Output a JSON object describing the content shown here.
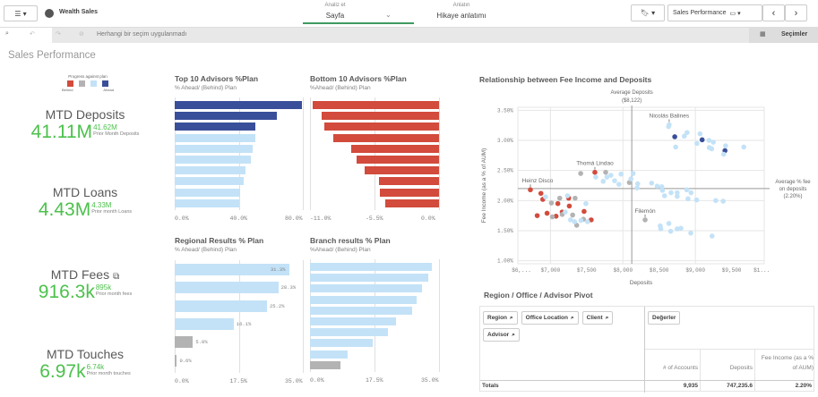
{
  "topbar": {
    "app_name": "Wealth Sales",
    "analyze_label": "Analiz et",
    "analyze_value": "Sayfa",
    "story_label": "Anlatın",
    "story_value": "Hikaye anlatımı",
    "sheet_name": "Sales Performance"
  },
  "selection_bar": {
    "status": "Herhangi bir seçim uygulanmadı",
    "selections_label": "Seçimler"
  },
  "page_title": "Sales Performance",
  "legend": {
    "title": "Progress against plan",
    "behind": "Behind",
    "ahead": "Ahead",
    "colors": [
      "#d24b3c",
      "#b3b3b3",
      "#c3e2f7",
      "#3a4f9a"
    ]
  },
  "kpis": [
    {
      "title": "MTD Deposits",
      "value": "41.11M",
      "prior": "41.62M",
      "prior_label": "Prior Month Deposits"
    },
    {
      "title": "MTD Loans",
      "value": "4.43M",
      "prior": "4.33M",
      "prior_label": "Prior month Loans"
    },
    {
      "title": "MTD Fees",
      "value": "916.3k",
      "prior": "895k",
      "prior_label": "Prior month fees"
    },
    {
      "title": "MTD Touches",
      "value": "6.97k",
      "prior": "6.74k",
      "prior_label": "Prior month touches"
    }
  ],
  "colors": {
    "ahead_strong": "#3a4f9a",
    "ahead": "#c3e2f7",
    "neutral": "#b3b3b3",
    "behind": "#d24b3c",
    "kpi_green": "#4cc14c"
  },
  "chart_data": [
    {
      "type": "bar",
      "orientation": "horizontal",
      "title": "Top 10 Advisors %Plan",
      "subtitle": "% Ahead/ (Behind) Plan",
      "xlim": [
        0,
        80
      ],
      "ticks": [
        "0.0%",
        "40.0%",
        "80.0%"
      ],
      "values": [
        79.4,
        63.6,
        50.5,
        50.1,
        48.6,
        47.7,
        44.3,
        43.0,
        40.7,
        40.2
      ],
      "colors": [
        "d",
        "d",
        "d",
        "l",
        "l",
        "l",
        "l",
        "l",
        "l",
        "l"
      ]
    },
    {
      "type": "bar",
      "orientation": "horizontal",
      "title": "Bottom 10 Advisors %Plan",
      "subtitle": "%Ahead/ (Behind) Plan",
      "xlim": [
        -11,
        0
      ],
      "ticks": [
        "-11.0%",
        "-5.5%",
        "0.0%"
      ],
      "values": [
        -10.8,
        -10.0,
        -9.75,
        -8.98,
        -7.47,
        -7.06,
        -6.32,
        -5.12,
        -5.04,
        -4.55
      ],
      "colors": [
        "r",
        "r",
        "r",
        "r",
        "r",
        "r",
        "r",
        "r",
        "r",
        "r"
      ]
    },
    {
      "type": "bar",
      "orientation": "horizontal",
      "title": "Regional Results % Plan",
      "subtitle": "% Ahead/ (Behind) Plan",
      "xlim": [
        0,
        35
      ],
      "ticks": [
        "0.0%",
        "17.5%",
        "35.0%"
      ],
      "values": [
        31.3,
        28.3,
        25.2,
        16.1,
        5.0,
        0.6
      ],
      "labels": [
        "31.3%",
        "28.3%",
        "25.2%",
        "16.1%",
        "5.0%",
        "0.6%"
      ],
      "colors": [
        "l",
        "l",
        "l",
        "l",
        "g",
        "g"
      ]
    },
    {
      "type": "bar",
      "orientation": "horizontal",
      "title": "Branch results % Plan",
      "subtitle": "%Ahead/ (Behind) Plan",
      "xlim": [
        0,
        35
      ],
      "ticks": [
        "0.0%",
        "17.5%",
        "35.0%"
      ],
      "values": [
        33.1,
        32.0,
        30.5,
        28.9,
        27.7,
        23.3,
        21.2,
        17.1,
        10.3,
        8.3
      ],
      "colors": [
        "l",
        "l",
        "l",
        "l",
        "l",
        "l",
        "l",
        "l",
        "l",
        "g"
      ]
    },
    {
      "type": "scatter",
      "title": "Relationship between Fee Income and Deposits",
      "xlabel": "Deposits",
      "ylabel": "Fee Income (as a % of AUM)",
      "xlim": [
        6550,
        9950
      ],
      "ylim": [
        0.95,
        3.55
      ],
      "xticks": [
        {
          "v": 6600,
          "t": "$6,..."
        },
        {
          "v": 7000,
          "t": "$7,000"
        },
        {
          "v": 7500,
          "t": "$7,500"
        },
        {
          "v": 8000,
          "t": "$8,000"
        },
        {
          "v": 8500,
          "t": "$8,500"
        },
        {
          "v": 9000,
          "t": "$9,000"
        },
        {
          "v": 9500,
          "t": "$9,500"
        },
        {
          "v": 9915,
          "t": "$1..."
        }
      ],
      "yticks": [
        {
          "v": 3.5,
          "t": "3.50%"
        },
        {
          "v": 3.0,
          "t": "3.00%"
        },
        {
          "v": 2.5,
          "t": "2.50%"
        },
        {
          "v": 2.0,
          "t": "2.00%"
        },
        {
          "v": 1.5,
          "t": "1.50%"
        },
        {
          "v": 1.0,
          "t": "1.00%"
        }
      ],
      "ref_x": {
        "value": 8122,
        "label1": "Average Deposits",
        "label2": "($8,122)"
      },
      "ref_y": {
        "value": 2.2,
        "label1": "Average % fee",
        "label2": "on deposits",
        "label3": "(2.20%)"
      },
      "annotations": [
        {
          "x": 8638,
          "y": 3.26,
          "t": "Nicolás Balines"
        },
        {
          "x": 7613,
          "y": 2.47,
          "t": "Thomá Lindao"
        },
        {
          "x": 6723,
          "y": 2.18,
          "t": "Heinz Disco"
        },
        {
          "x": 8306,
          "y": 1.68,
          "t": "Filemón"
        }
      ],
      "points": [
        [
          8715,
          3.06,
          "d"
        ],
        [
          9093,
          3.01,
          "d"
        ],
        [
          9408,
          2.83,
          "d"
        ],
        [
          8638,
          3.26,
          "l"
        ],
        [
          8630,
          3.23,
          "l"
        ],
        [
          8885,
          3.13,
          "l"
        ],
        [
          8847,
          3.07,
          "l"
        ],
        [
          9064,
          3.11,
          "l"
        ],
        [
          9187,
          3.0,
          "l"
        ],
        [
          9247,
          2.97,
          "l"
        ],
        [
          9021,
          2.95,
          "l"
        ],
        [
          8728,
          2.89,
          "l"
        ],
        [
          9191,
          2.88,
          "l"
        ],
        [
          9225,
          2.86,
          "l"
        ],
        [
          9417,
          2.91,
          "l"
        ],
        [
          9391,
          2.77,
          "l"
        ],
        [
          9668,
          2.89,
          "l"
        ],
        [
          7613,
          2.47,
          "r"
        ],
        [
          7417,
          2.45,
          "g"
        ],
        [
          7762,
          2.47,
          "g"
        ],
        [
          8089,
          2.3,
          "g"
        ],
        [
          8140,
          2.45,
          "l"
        ],
        [
          7974,
          2.44,
          "l"
        ],
        [
          7834,
          2.42,
          "l"
        ],
        [
          7625,
          2.39,
          "l"
        ],
        [
          7779,
          2.39,
          "l"
        ],
        [
          7728,
          2.32,
          "l"
        ],
        [
          7885,
          2.33,
          "l"
        ],
        [
          7945,
          2.27,
          "l"
        ],
        [
          8111,
          2.36,
          "l"
        ],
        [
          8204,
          2.28,
          "l"
        ],
        [
          8196,
          2.21,
          "l"
        ],
        [
          8396,
          2.29,
          "l"
        ],
        [
          8472,
          2.24,
          "l"
        ],
        [
          8536,
          2.23,
          "l"
        ],
        [
          8545,
          2.17,
          "l"
        ],
        [
          8574,
          2.08,
          "l"
        ],
        [
          8664,
          2.13,
          "l"
        ],
        [
          8749,
          2.13,
          "l"
        ],
        [
          8749,
          2.07,
          "l"
        ],
        [
          8881,
          2.18,
          "l"
        ],
        [
          8940,
          2.13,
          "l"
        ],
        [
          8898,
          2.03,
          "l"
        ],
        [
          9017,
          2.01,
          "l"
        ],
        [
          9281,
          2.0,
          "l"
        ],
        [
          9383,
          1.99,
          "l"
        ],
        [
          6723,
          2.18,
          "r"
        ],
        [
          6868,
          2.12,
          "r"
        ],
        [
          6894,
          2.02,
          "r"
        ],
        [
          7102,
          1.95,
          "r"
        ],
        [
          7251,
          2.04,
          "r"
        ],
        [
          7260,
          1.91,
          "r"
        ],
        [
          6817,
          1.75,
          "r"
        ],
        [
          6953,
          1.79,
          "r"
        ],
        [
          7077,
          1.74,
          "r"
        ],
        [
          7162,
          1.81,
          "r"
        ],
        [
          7464,
          1.82,
          "r"
        ],
        [
          7562,
          1.68,
          "r"
        ],
        [
          7013,
          1.96,
          "g"
        ],
        [
          7128,
          2.04,
          "g"
        ],
        [
          7340,
          2.04,
          "g"
        ],
        [
          7026,
          1.73,
          "g"
        ],
        [
          7162,
          1.77,
          "g"
        ],
        [
          7306,
          1.76,
          "g"
        ],
        [
          7362,
          1.59,
          "g"
        ],
        [
          7455,
          1.69,
          "g"
        ],
        [
          6932,
          2.06,
          "l"
        ],
        [
          7234,
          2.08,
          "l"
        ],
        [
          7489,
          1.95,
          "l"
        ],
        [
          7204,
          1.81,
          "l"
        ],
        [
          7277,
          1.68,
          "l"
        ],
        [
          7332,
          1.65,
          "l"
        ],
        [
          7421,
          1.67,
          "l"
        ],
        [
          7511,
          1.65,
          "l"
        ],
        [
          8306,
          1.68,
          "g"
        ],
        [
          8515,
          1.58,
          "l"
        ],
        [
          8523,
          1.53,
          "l"
        ],
        [
          8634,
          1.62,
          "l"
        ],
        [
          8659,
          1.49,
          "l"
        ],
        [
          8749,
          1.53,
          "l"
        ],
        [
          8800,
          1.54,
          "l"
        ],
        [
          8936,
          1.46,
          "l"
        ],
        [
          9230,
          1.41,
          "l"
        ]
      ]
    }
  ],
  "pivot": {
    "title": "Region / Office / Advisor Pivot",
    "dimensions": [
      "Region",
      "Office Location",
      "Client",
      "Advisor"
    ],
    "values_label": "Değerler",
    "columns": [
      "# of Accounts",
      "Deposits",
      "Fee Income (as a % of AUM)"
    ],
    "totals_label": "Totals",
    "totals": [
      "9,935",
      "747,235.6",
      "2.20%"
    ]
  }
}
